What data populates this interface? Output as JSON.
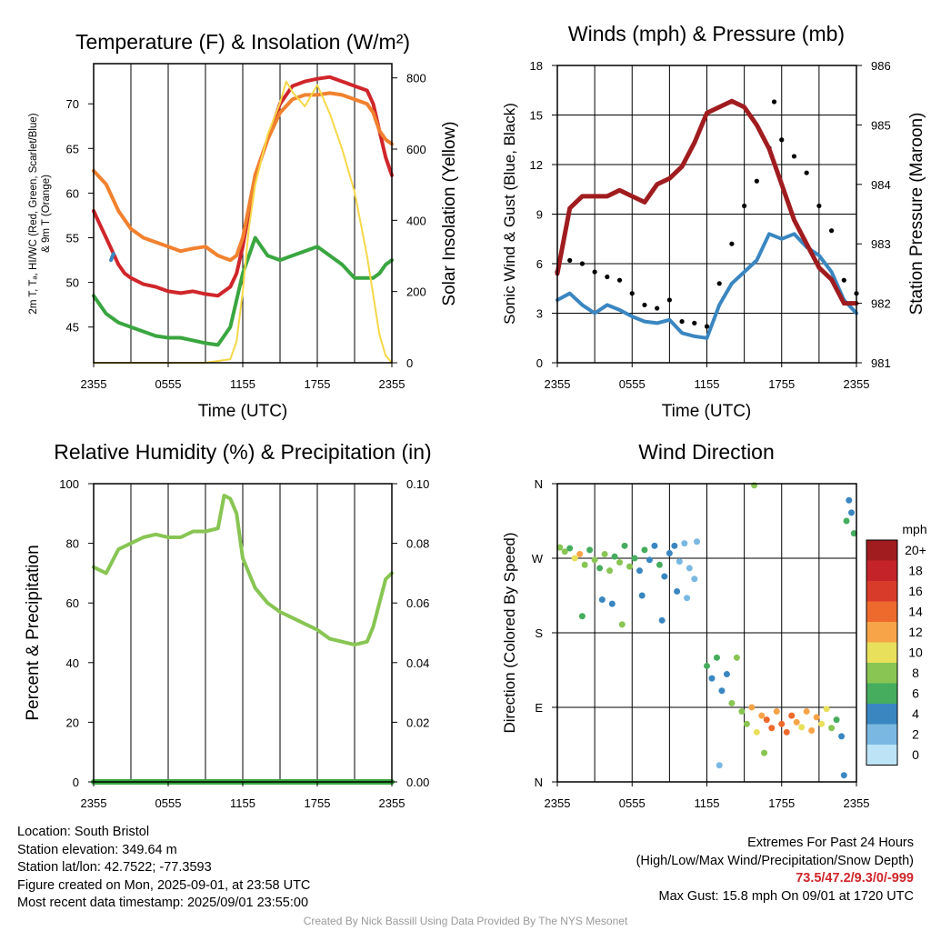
{
  "panels": {
    "temp": {
      "title": "Temperature (F) & Insolation (W/m²)",
      "xlabel": "Time (UTC)",
      "ylabel_left": [
        "2m T, Tₐ, HI/WC (Red, Green, Scarlet/Blue)",
        "& 9m T (Orange)"
      ],
      "ylabel_right": "Solar Insolation (Yellow)"
    },
    "wind": {
      "title": "Winds (mph) & Pressure (mb)",
      "xlabel": "Time (UTC)",
      "ylabel_left": "Sonic Wind & Gust (Blue, Black)",
      "ylabel_right": "Station Pressure (Maroon)"
    },
    "rh": {
      "title": "Relative Humidity (%) & Precipitation (in)",
      "ylabel_left": "Percent & Precipitation"
    },
    "dir": {
      "title": "Wind Direction",
      "ylabel_left": "Direction (Colored By Speed)",
      "colorbar_title": "mph",
      "colorbar_labels": [
        "20+",
        "18",
        "16",
        "14",
        "12",
        "10",
        "8",
        "6",
        "4",
        "2",
        "0"
      ],
      "colorbar_colors": [
        "#a01c1f",
        "#c4232a",
        "#d93b2b",
        "#ee6a2c",
        "#f7a448",
        "#e8e05a",
        "#88c553",
        "#46ad5e",
        "#3a86c1",
        "#7ab8e2",
        "#bde4f6"
      ]
    }
  },
  "info": {
    "location": "Location: South Bristol",
    "elevation": "Station elevation: 349.64 m",
    "latlon": "Station lat/lon: 42.7522; -77.3593",
    "created": "Figure created on Mon, 2025-09-01, at 23:58 UTC",
    "recent": "Most recent data timestamp: 2025/09/01 23:55:00"
  },
  "extremes": {
    "heading": "Extremes For Past 24 Hours",
    "subheading": "(High/Low/Max Wind/Precipitation/Snow Depth)",
    "values": "73.5/47.2/9.3/0/-999",
    "gust": "Max Gust: 15.8 mph On 09/01 at 1720 UTC"
  },
  "credit": "Created By Nick Bassill Using Data Provided By The NYS Mesonet",
  "chart_data": [
    {
      "type": "line",
      "title": "Temperature (F) & Insolation (W/m²)",
      "xlabel": "Time (UTC)",
      "x_ticks": [
        "2355",
        "0555",
        "1155",
        "1755",
        "2355"
      ],
      "xlim": [
        0,
        24
      ],
      "ylim": [
        41,
        74.5
      ],
      "y_ticks": [
        45,
        50,
        55,
        60,
        65,
        70
      ],
      "y2lim": [
        0,
        840
      ],
      "y2_ticks": [
        0,
        200,
        400,
        600,
        800
      ],
      "series": [
        {
          "name": "2m T",
          "color": "#d0262b",
          "axis": "left",
          "x": [
            0,
            0.5,
            1,
            1.5,
            2,
            2.5,
            3,
            4,
            5,
            6,
            7,
            8,
            9,
            10,
            11,
            11.5,
            12,
            13,
            14,
            15,
            16,
            17,
            18,
            19,
            20,
            21,
            22,
            22.5,
            23,
            23.5,
            24
          ],
          "y": [
            58,
            56.5,
            55,
            53.5,
            52,
            51,
            50.5,
            49.8,
            49.5,
            49,
            48.8,
            49,
            48.7,
            48.5,
            49.5,
            51,
            54,
            62,
            66,
            70,
            72,
            72.5,
            72.8,
            73,
            72.5,
            72,
            71.5,
            70,
            67,
            64,
            62
          ]
        },
        {
          "name": "9m T",
          "color": "#f1812f",
          "axis": "left",
          "x": [
            0,
            1,
            2,
            3,
            4,
            5,
            6,
            7,
            8,
            9,
            10,
            11,
            11.5,
            12,
            13,
            14,
            15,
            16,
            17,
            18,
            19,
            20,
            21,
            22,
            22.5,
            23,
            23.5,
            24
          ],
          "y": [
            62.5,
            61,
            58,
            56,
            55,
            54.5,
            54,
            53.5,
            53.8,
            54,
            53,
            52.5,
            53,
            55,
            62,
            66,
            69,
            70.5,
            71,
            71,
            71.2,
            71,
            70.5,
            70,
            69,
            67,
            66,
            65.5
          ]
        },
        {
          "name": "Tₐ",
          "color": "#3aa640",
          "axis": "left",
          "x": [
            0,
            1,
            2,
            3,
            4,
            5,
            6,
            7,
            8,
            9,
            10,
            11,
            12,
            13,
            14,
            15,
            16,
            17,
            18,
            19,
            20,
            21,
            22,
            22.5,
            23,
            23.5,
            24
          ],
          "y": [
            48.5,
            46.5,
            45.5,
            45,
            44.5,
            44,
            43.8,
            43.8,
            43.5,
            43.2,
            43,
            45,
            51,
            55,
            53,
            52.5,
            53,
            53.5,
            54,
            53,
            52,
            50.5,
            50.5,
            50.5,
            51,
            52,
            52.5
          ]
        },
        {
          "name": "HI/WC",
          "color": "#3a86c1",
          "axis": "left",
          "x": [
            1.4,
            1.5,
            1.6
          ],
          "y": [
            52.5,
            52.9,
            53.2
          ]
        },
        {
          "name": "Solar Insolation",
          "color": "#f6d848",
          "axis": "right",
          "x": [
            0,
            9,
            11,
            11.5,
            12,
            12.5,
            13,
            14,
            15,
            15.5,
            16,
            17,
            18,
            19,
            20,
            21,
            22,
            23,
            23.5,
            24
          ],
          "y": [
            0,
            0,
            10,
            60,
            200,
            380,
            500,
            640,
            730,
            790,
            760,
            720,
            780,
            700,
            600,
            480,
            300,
            80,
            20,
            0
          ]
        }
      ]
    },
    {
      "type": "line",
      "title": "Winds (mph) & Pressure (mb)",
      "xlabel": "Time (UTC)",
      "x_ticks": [
        "2355",
        "0555",
        "1155",
        "1755",
        "2355"
      ],
      "xlim": [
        0,
        24
      ],
      "ylim": [
        0,
        18
      ],
      "y_ticks": [
        0,
        3,
        6,
        9,
        12,
        15,
        18
      ],
      "y2lim": [
        981,
        986
      ],
      "y2_ticks": [
        981,
        982,
        983,
        984,
        985,
        986
      ],
      "series": [
        {
          "name": "Sonic Wind",
          "color": "#3a86c1",
          "axis": "left",
          "x": [
            0,
            1,
            2,
            3,
            4,
            5,
            6,
            7,
            8,
            9,
            10,
            11,
            12,
            13,
            14,
            15,
            16,
            17,
            18,
            19,
            20,
            21,
            22,
            23,
            24
          ],
          "y": [
            3.8,
            4.2,
            3.5,
            3.0,
            3.5,
            3.2,
            2.8,
            2.5,
            2.4,
            2.6,
            1.8,
            1.6,
            1.5,
            3.5,
            4.8,
            5.5,
            6.2,
            7.8,
            7.5,
            7.8,
            7.0,
            6.5,
            5.5,
            3.8,
            3.0
          ]
        },
        {
          "name": "Gust",
          "color": "#000000",
          "axis": "left",
          "x": [
            0,
            1,
            2,
            3,
            4,
            5,
            6,
            7,
            8,
            9,
            10,
            11,
            12,
            13,
            14,
            15,
            16,
            17,
            17.4,
            18,
            19,
            20,
            21,
            22,
            23,
            24
          ],
          "y": [
            5.5,
            6.2,
            6.0,
            5.5,
            5.2,
            5.0,
            4.2,
            3.5,
            3.3,
            3.8,
            2.5,
            2.4,
            2.2,
            4.8,
            7.2,
            9.5,
            11.0,
            13.0,
            15.8,
            13.5,
            12.5,
            11.5,
            9.5,
            8.0,
            5.0,
            4.2
          ]
        },
        {
          "name": "Station Pressure",
          "color": "#a01c1f",
          "axis": "right",
          "x": [
            0,
            1,
            2,
            3,
            4,
            5,
            6,
            7,
            8,
            9,
            10,
            11,
            12,
            13,
            14,
            15,
            16,
            17,
            18,
            19,
            20,
            21,
            22,
            23,
            24
          ],
          "y": [
            982.5,
            983.6,
            983.8,
            983.8,
            983.8,
            983.9,
            983.8,
            983.7,
            984.0,
            984.1,
            984.3,
            984.7,
            985.2,
            985.3,
            985.4,
            985.3,
            985.0,
            984.6,
            984.0,
            983.4,
            983.0,
            982.6,
            982.4,
            982.0,
            982.0
          ]
        }
      ]
    },
    {
      "type": "line",
      "title": "Relative Humidity (%) & Precipitation (in)",
      "x_ticks": [
        "2355",
        "0555",
        "1155",
        "1755",
        "2355"
      ],
      "xlim": [
        0,
        24
      ],
      "ylim": [
        0,
        100
      ],
      "y_ticks": [
        0,
        20,
        40,
        60,
        80,
        100
      ],
      "y2lim": [
        0,
        0.1
      ],
      "y2_ticks": [
        0,
        0.02,
        0.04,
        0.06,
        0.08,
        0.1
      ],
      "series": [
        {
          "name": "Relative Humidity",
          "color": "#88c553",
          "axis": "left",
          "x": [
            0,
            1,
            2,
            3,
            4,
            5,
            6,
            7,
            8,
            9,
            10,
            10.5,
            11,
            11.5,
            12,
            13,
            14,
            15,
            16,
            17,
            18,
            19,
            20,
            21,
            22,
            22.5,
            23,
            23.5,
            24
          ],
          "y": [
            72,
            70,
            78,
            80,
            82,
            83,
            82,
            82,
            84,
            84,
            85,
            96,
            95,
            90,
            75,
            65,
            60,
            57,
            55,
            53,
            51,
            48,
            47,
            46,
            47,
            52,
            60,
            68,
            70
          ]
        },
        {
          "name": "Precipitation",
          "color": "#3aa640",
          "axis": "right",
          "x": [
            0,
            24
          ],
          "y": [
            0,
            0
          ]
        }
      ]
    },
    {
      "type": "scatter",
      "title": "Wind Direction",
      "x_ticks": [
        "2355",
        "0555",
        "1155",
        "1755",
        "2355"
      ],
      "xlim": [
        0,
        24
      ],
      "ylim": [
        0,
        360
      ],
      "y_ticks": [
        "N",
        "E",
        "S",
        "W",
        "N"
      ],
      "colorbar": {
        "title": "mph",
        "labels": [
          "20+",
          "18",
          "16",
          "14",
          "12",
          "10",
          "8",
          "6",
          "4",
          "2",
          "0"
        ]
      },
      "points": [
        {
          "x": 0.2,
          "y": 283,
          "s": 4
        },
        {
          "x": 0.6,
          "y": 278,
          "s": 4
        },
        {
          "x": 1.0,
          "y": 282,
          "s": 3
        },
        {
          "x": 1.4,
          "y": 270,
          "s": 5
        },
        {
          "x": 1.8,
          "y": 275,
          "s": 6
        },
        {
          "x": 2.2,
          "y": 262,
          "s": 4
        },
        {
          "x": 2.6,
          "y": 280,
          "s": 3
        },
        {
          "x": 3.0,
          "y": 268,
          "s": 4
        },
        {
          "x": 3.4,
          "y": 258,
          "s": 3
        },
        {
          "x": 3.8,
          "y": 275,
          "s": 4
        },
        {
          "x": 4.2,
          "y": 255,
          "s": 4
        },
        {
          "x": 4.6,
          "y": 272,
          "s": 3
        },
        {
          "x": 5.0,
          "y": 265,
          "s": 4
        },
        {
          "x": 5.4,
          "y": 285,
          "s": 3
        },
        {
          "x": 5.8,
          "y": 260,
          "s": 4
        },
        {
          "x": 6.2,
          "y": 270,
          "s": 3
        },
        {
          "x": 6.6,
          "y": 255,
          "s": 2
        },
        {
          "x": 7.0,
          "y": 280,
          "s": 3
        },
        {
          "x": 7.4,
          "y": 268,
          "s": 2
        },
        {
          "x": 7.8,
          "y": 285,
          "s": 2
        },
        {
          "x": 8.2,
          "y": 262,
          "s": 3
        },
        {
          "x": 8.6,
          "y": 248,
          "s": 2
        },
        {
          "x": 9.0,
          "y": 276,
          "s": 2
        },
        {
          "x": 9.4,
          "y": 285,
          "s": 2
        },
        {
          "x": 9.8,
          "y": 266,
          "s": 1
        },
        {
          "x": 10.2,
          "y": 288,
          "s": 1
        },
        {
          "x": 10.6,
          "y": 258,
          "s": 1
        },
        {
          "x": 11.0,
          "y": 245,
          "s": 1
        },
        {
          "x": 11.2,
          "y": 290,
          "s": 1
        },
        {
          "x": 3.6,
          "y": 220,
          "s": 2
        },
        {
          "x": 2.0,
          "y": 200,
          "s": 3
        },
        {
          "x": 4.4,
          "y": 215,
          "s": 2
        },
        {
          "x": 5.2,
          "y": 190,
          "s": 4
        },
        {
          "x": 6.8,
          "y": 225,
          "s": 2
        },
        {
          "x": 8.4,
          "y": 195,
          "s": 2
        },
        {
          "x": 9.6,
          "y": 230,
          "s": 2
        },
        {
          "x": 10.4,
          "y": 222,
          "s": 1
        },
        {
          "x": 12.0,
          "y": 140,
          "s": 3
        },
        {
          "x": 12.4,
          "y": 125,
          "s": 2
        },
        {
          "x": 12.8,
          "y": 150,
          "s": 3
        },
        {
          "x": 13.2,
          "y": 110,
          "s": 2
        },
        {
          "x": 13.6,
          "y": 130,
          "s": 2
        },
        {
          "x": 14.0,
          "y": 95,
          "s": 4
        },
        {
          "x": 14.4,
          "y": 150,
          "s": 4
        },
        {
          "x": 14.8,
          "y": 85,
          "s": 4
        },
        {
          "x": 15.2,
          "y": 70,
          "s": 4
        },
        {
          "x": 15.6,
          "y": 90,
          "s": 6
        },
        {
          "x": 16.0,
          "y": 60,
          "s": 5
        },
        {
          "x": 16.4,
          "y": 80,
          "s": 6
        },
        {
          "x": 16.8,
          "y": 75,
          "s": 7
        },
        {
          "x": 17.2,
          "y": 65,
          "s": 7
        },
        {
          "x": 17.6,
          "y": 85,
          "s": 6
        },
        {
          "x": 18.0,
          "y": 70,
          "s": 7
        },
        {
          "x": 18.4,
          "y": 60,
          "s": 7
        },
        {
          "x": 18.8,
          "y": 80,
          "s": 7
        },
        {
          "x": 19.2,
          "y": 72,
          "s": 6
        },
        {
          "x": 19.6,
          "y": 66,
          "s": 5
        },
        {
          "x": 20.0,
          "y": 85,
          "s": 6
        },
        {
          "x": 20.4,
          "y": 62,
          "s": 6
        },
        {
          "x": 20.8,
          "y": 78,
          "s": 6
        },
        {
          "x": 21.2,
          "y": 70,
          "s": 5
        },
        {
          "x": 21.6,
          "y": 88,
          "s": 5
        },
        {
          "x": 22.0,
          "y": 65,
          "s": 4
        },
        {
          "x": 22.4,
          "y": 75,
          "s": 3
        },
        {
          "x": 22.8,
          "y": 55,
          "s": 2
        },
        {
          "x": 23.0,
          "y": 8,
          "s": 2
        },
        {
          "x": 23.2,
          "y": 315,
          "s": 3
        },
        {
          "x": 23.4,
          "y": 340,
          "s": 2
        },
        {
          "x": 23.6,
          "y": 325,
          "s": 2
        },
        {
          "x": 23.8,
          "y": 300,
          "s": 3
        },
        {
          "x": 15.8,
          "y": 358,
          "s": 4
        },
        {
          "x": 13.0,
          "y": 20,
          "s": 1
        },
        {
          "x": 16.6,
          "y": 35,
          "s": 4
        }
      ]
    }
  ]
}
